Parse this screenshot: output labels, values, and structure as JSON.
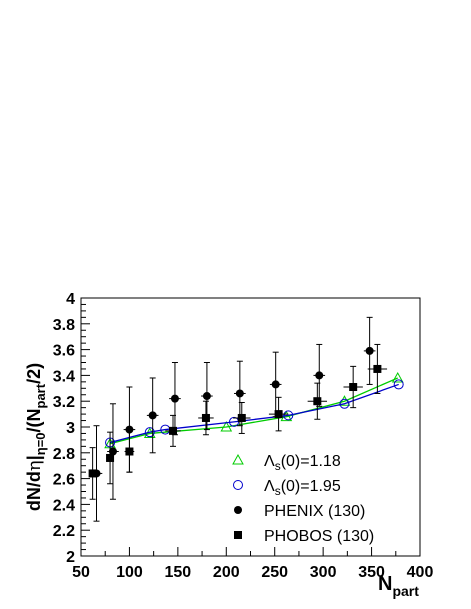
{
  "chart_data": {
    "type": "scatter",
    "xlabel": "N",
    "xlabel_sub": "part",
    "ylabel_main": "dN/d",
    "ylabel_eta": "η",
    "ylabel_bar": "|",
    "ylabel_sub": "η=0",
    "ylabel_tail": "/(N",
    "ylabel_sub2": "part",
    "ylabel_end": "/2)",
    "xlim": [
      50,
      400
    ],
    "ylim": [
      2,
      4
    ],
    "xticks": [
      50,
      100,
      150,
      200,
      250,
      300,
      350,
      400
    ],
    "xtick_labels": [
      "50",
      "100",
      "150",
      "200",
      "250",
      "300",
      "350",
      "400"
    ],
    "yticks": [
      2,
      2.2,
      2.4,
      2.6,
      2.8,
      3,
      3.2,
      3.4,
      3.6,
      3.8,
      4
    ],
    "ytick_labels": [
      "2",
      "2.2",
      "2.4",
      "2.6",
      "2.8",
      "3",
      "3.2",
      "3.4",
      "3.6",
      "3.8",
      "4"
    ],
    "grid": false,
    "legend_position": "lower-right",
    "series": [
      {
        "name": "Λs(0)=1.18",
        "legend_main": "Λ",
        "legend_sub": "s",
        "legend_tail": "(0)=1.18",
        "kind": "model",
        "marker": "triangle-open",
        "color": "#00cc00",
        "points": [
          [
            80,
            2.87
          ],
          [
            121,
            2.95
          ],
          [
            200,
            3.0
          ],
          [
            262,
            3.08
          ],
          [
            322,
            3.2
          ],
          [
            377,
            3.38
          ]
        ]
      },
      {
        "name": "Λs(0)=1.95",
        "legend_main": "Λ",
        "legend_sub": "s",
        "legend_tail": "(0)=1.95",
        "kind": "model",
        "marker": "circle-open",
        "color": "#0000cc",
        "points": [
          [
            80,
            2.88
          ],
          [
            121,
            2.96
          ],
          [
            137,
            2.98
          ],
          [
            208,
            3.04
          ],
          [
            264,
            3.09
          ],
          [
            322,
            3.18
          ],
          [
            378,
            3.33
          ]
        ]
      },
      {
        "name": "PHENIX (130)",
        "kind": "data",
        "marker": "circle-filled",
        "color": "#000000",
        "points": [
          {
            "x": 66,
            "y": 2.64,
            "xerr": 6,
            "yerr": 0.37
          },
          {
            "x": 83,
            "y": 2.81,
            "xerr": 6,
            "yerr": 0.37
          },
          {
            "x": 100,
            "y": 2.98,
            "xerr": 6,
            "yerr": 0.33
          },
          {
            "x": 124,
            "y": 3.09,
            "xerr": 6,
            "yerr": 0.29
          },
          {
            "x": 147,
            "y": 3.22,
            "xerr": 6,
            "yerr": 0.28
          },
          {
            "x": 180,
            "y": 3.24,
            "xerr": 6,
            "yerr": 0.26
          },
          {
            "x": 214,
            "y": 3.26,
            "xerr": 6,
            "yerr": 0.25
          },
          {
            "x": 251,
            "y": 3.33,
            "xerr": 6,
            "yerr": 0.25
          },
          {
            "x": 296,
            "y": 3.4,
            "xerr": 6,
            "yerr": 0.24
          },
          {
            "x": 348,
            "y": 3.59,
            "xerr": 6,
            "yerr": 0.26
          }
        ]
      },
      {
        "name": "PHOBOS (130)",
        "kind": "data",
        "marker": "square-filled",
        "color": "#000000",
        "points": [
          {
            "x": 62,
            "y": 2.64,
            "xerr": 3,
            "yerr": 0.2
          },
          {
            "x": 80,
            "y": 2.76,
            "xerr": 4,
            "yerr": 0.2
          },
          {
            "x": 100,
            "y": 2.81,
            "xerr": 5,
            "yerr": 0.16
          },
          {
            "x": 145,
            "y": 2.97,
            "xerr": 8,
            "yerr": 0.12
          },
          {
            "x": 179,
            "y": 3.07,
            "xerr": 8,
            "yerr": 0.13
          },
          {
            "x": 216,
            "y": 3.07,
            "xerr": 9,
            "yerr": 0.12
          },
          {
            "x": 254,
            "y": 3.1,
            "xerr": 10,
            "yerr": 0.13
          },
          {
            "x": 294,
            "y": 3.2,
            "xerr": 10,
            "yerr": 0.14
          },
          {
            "x": 331,
            "y": 3.31,
            "xerr": 10,
            "yerr": 0.16
          },
          {
            "x": 356,
            "y": 3.45,
            "xerr": 10,
            "yerr": 0.19
          }
        ]
      }
    ]
  }
}
